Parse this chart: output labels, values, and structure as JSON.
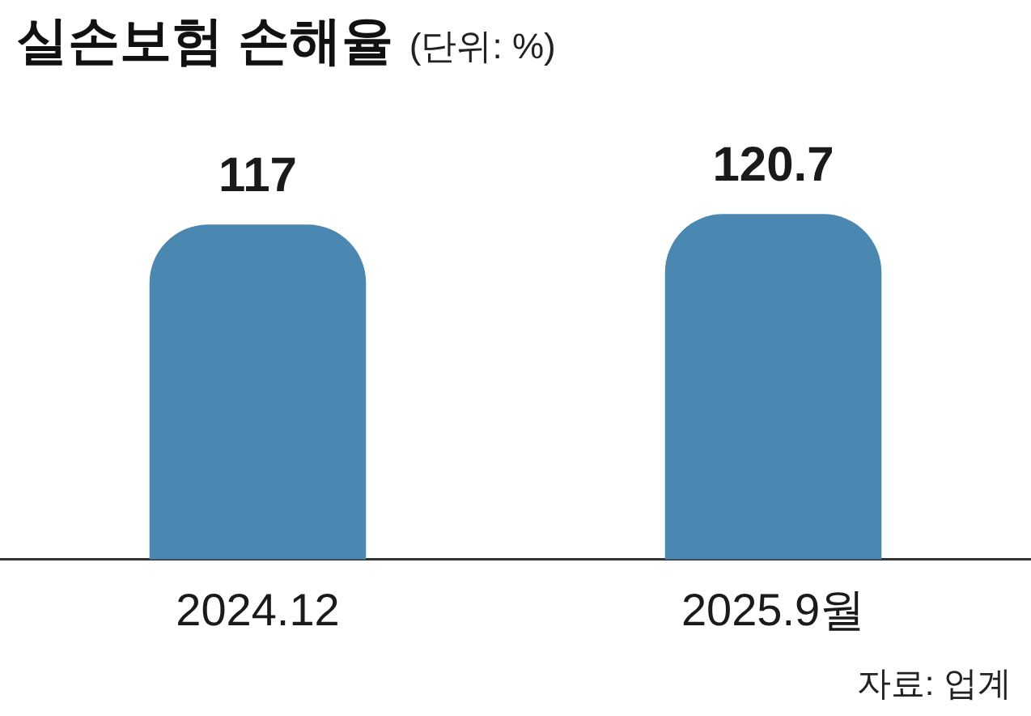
{
  "chart_data": {
    "type": "bar",
    "title": "실손보험 손해율",
    "subtitle": "(단위: %)",
    "categories": [
      "2024.12",
      "2025.9월"
    ],
    "values": [
      117,
      120.7
    ],
    "color": "#4a87b1",
    "data_labels": true,
    "legend": false,
    "annotations": [
      "자료: 업계"
    ]
  }
}
